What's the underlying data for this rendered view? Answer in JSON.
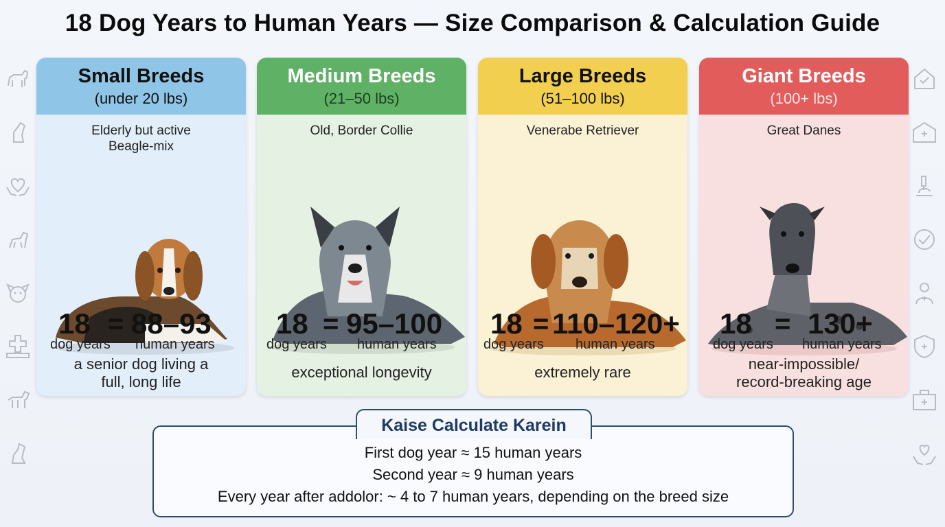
{
  "title": "18 Dog Years to Human Years — Size Comparison & Calculation Guide",
  "cards": [
    {
      "name": "Small Breeds",
      "range": "(under 20 lbs)",
      "desc_line1": "Elderly but active",
      "desc_line2": "Beagle-mix",
      "dog_years": "18",
      "equals": "=",
      "human_years": "88–93",
      "dog_unit": "dog years",
      "human_unit": "human years",
      "note_line1": "a senior dog living a",
      "note_line2": "full, long life",
      "color": "#8fc6e8"
    },
    {
      "name": "Medium Breeds",
      "range": "(21–50 lbs)",
      "desc_line1": "Old, Border Collie",
      "desc_line2": "",
      "dog_years": "18",
      "equals": "=",
      "human_years": "95–100",
      "dog_unit": "dog years",
      "human_unit": "human years",
      "note_line1": "exceptional longevity",
      "note_line2": "",
      "color": "#5fb166"
    },
    {
      "name": "Large Breeds",
      "range": "(51–100 lbs)",
      "desc_line1": "Venerabe Retriever",
      "desc_line2": "",
      "dog_years": "18",
      "equals": "=",
      "human_years": "110–120+",
      "dog_unit": "dog years",
      "human_unit": "human years",
      "note_line1": "extremely rare",
      "note_line2": "",
      "color": "#f2cf4e"
    },
    {
      "name": "Giant Breeds",
      "range": "(100+ lbs)",
      "desc_line1": "Great Danes",
      "desc_line2": "",
      "dog_years": "18",
      "equals": "=",
      "human_years": "130+",
      "dog_unit": "dog years",
      "human_unit": "human years",
      "note_line1": "near-impossible/",
      "note_line2": "record-breaking age",
      "color": "#e25c5c"
    }
  ],
  "calc": {
    "title": "Kaise Calculate Karein",
    "line1": "First dog year ≈ 15 human years",
    "line2": "Second year ≈ 9 human years",
    "line3": "Every year after addolor: ~ 4 to 7 human years, depending on the breed size"
  },
  "icons": {
    "left": [
      "dog-icon",
      "dog-sitting-icon",
      "heart-hands-icon",
      "dog-walking-icon",
      "dog-face-icon",
      "medical-cross-icon",
      "dog-standing-icon",
      "dog-sitting-icon"
    ],
    "right": [
      "health-check-icon",
      "vet-clinic-icon",
      "microscope-icon",
      "pet-shield-icon",
      "vet-doctor-icon",
      "health-shield-icon",
      "medical-kit-icon",
      "care-hands-icon"
    ]
  }
}
